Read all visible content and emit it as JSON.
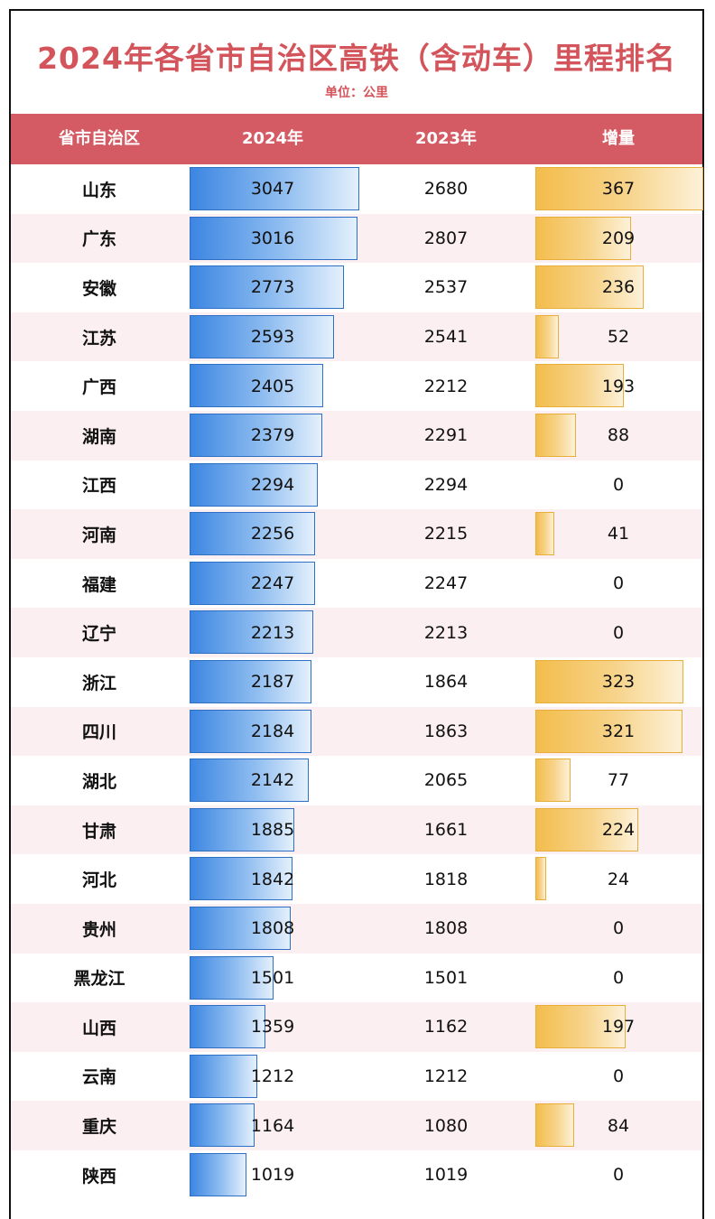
{
  "title": "2024年各省市自治区高铁（含动车）里程排名",
  "unit": "单位：公里",
  "headers": {
    "province": "省市自治区",
    "y2024": "2024年",
    "y2023": "2023年",
    "increase": "增量"
  },
  "colors": {
    "accent": "#d45a63",
    "bar_2024": "#3c86e2",
    "bar_increase": "#f3bd4c",
    "row_alt": "#fbeff1"
  },
  "chart_data": {
    "type": "table",
    "columns": [
      "省市自治区",
      "2024年",
      "2023年",
      "增量"
    ],
    "rows": [
      {
        "province": "山东",
        "y2024": 3047,
        "y2023": 2680,
        "increase": 367
      },
      {
        "province": "广东",
        "y2024": 3016,
        "y2023": 2807,
        "increase": 209
      },
      {
        "province": "安徽",
        "y2024": 2773,
        "y2023": 2537,
        "increase": 236
      },
      {
        "province": "江苏",
        "y2024": 2593,
        "y2023": 2541,
        "increase": 52
      },
      {
        "province": "广西",
        "y2024": 2405,
        "y2023": 2212,
        "increase": 193
      },
      {
        "province": "湖南",
        "y2024": 2379,
        "y2023": 2291,
        "increase": 88
      },
      {
        "province": "江西",
        "y2024": 2294,
        "y2023": 2294,
        "increase": 0
      },
      {
        "province": "河南",
        "y2024": 2256,
        "y2023": 2215,
        "increase": 41
      },
      {
        "province": "福建",
        "y2024": 2247,
        "y2023": 2247,
        "increase": 0
      },
      {
        "province": "辽宁",
        "y2024": 2213,
        "y2023": 2213,
        "increase": 0
      },
      {
        "province": "浙江",
        "y2024": 2187,
        "y2023": 1864,
        "increase": 323
      },
      {
        "province": "四川",
        "y2024": 2184,
        "y2023": 1863,
        "increase": 321
      },
      {
        "province": "湖北",
        "y2024": 2142,
        "y2023": 2065,
        "increase": 77
      },
      {
        "province": "甘肃",
        "y2024": 1885,
        "y2023": 1661,
        "increase": 224
      },
      {
        "province": "河北",
        "y2024": 1842,
        "y2023": 1818,
        "increase": 24
      },
      {
        "province": "贵州",
        "y2024": 1808,
        "y2023": 1808,
        "increase": 0
      },
      {
        "province": "黑龙江",
        "y2024": 1501,
        "y2023": 1501,
        "increase": 0
      },
      {
        "province": "山西",
        "y2024": 1359,
        "y2023": 1162,
        "increase": 197
      },
      {
        "province": "云南",
        "y2024": 1212,
        "y2023": 1212,
        "increase": 0
      },
      {
        "province": "重庆",
        "y2024": 1164,
        "y2023": 1080,
        "increase": 84
      },
      {
        "province": "陕西",
        "y2024": 1019,
        "y2023": 1019,
        "increase": 0
      }
    ]
  }
}
